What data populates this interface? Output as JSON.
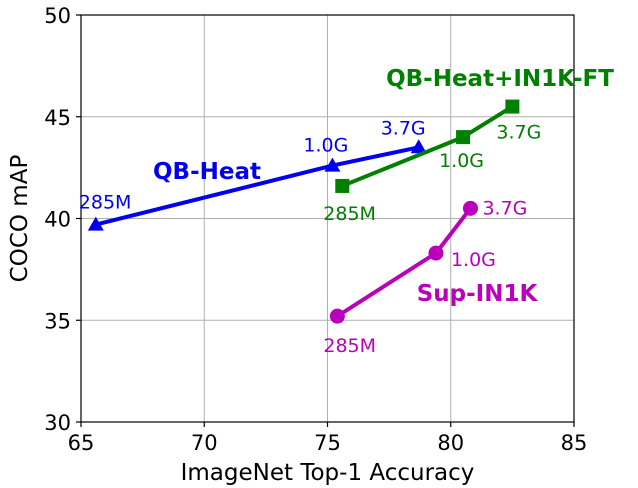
{
  "chart_data": {
    "type": "line",
    "xlabel": "ImageNet Top-1 Accuracy",
    "ylabel": "COCO mAP",
    "xlim": [
      65,
      85
    ],
    "ylim": [
      30,
      50
    ],
    "xticks": [
      "65",
      "70",
      "75",
      "80",
      "85"
    ],
    "yticks": [
      "30",
      "35",
      "40",
      "45",
      "50"
    ],
    "grid": true,
    "series": [
      {
        "name": "QB-Heat",
        "color": "#0000ee",
        "marker": "triangle",
        "x": [
          65.6,
          75.2,
          78.7
        ],
        "y": [
          39.7,
          42.6,
          43.5
        ],
        "point_labels": [
          "285M",
          "1.0G",
          "3.7G"
        ]
      },
      {
        "name": "QB-Heat+IN1K-FT",
        "color": "#008000",
        "marker": "square",
        "x": [
          75.6,
          80.5,
          82.5
        ],
        "y": [
          41.6,
          44.0,
          45.5
        ],
        "point_labels": [
          "285M",
          "1.0G",
          "3.7G"
        ]
      },
      {
        "name": "Sup-IN1K",
        "color": "#bb00bb",
        "marker": "circle",
        "x": [
          75.4,
          79.4,
          80.8
        ],
        "y": [
          35.2,
          38.3,
          40.5
        ],
        "point_labels": [
          "285M",
          "1.0G",
          "3.7G"
        ]
      }
    ]
  }
}
